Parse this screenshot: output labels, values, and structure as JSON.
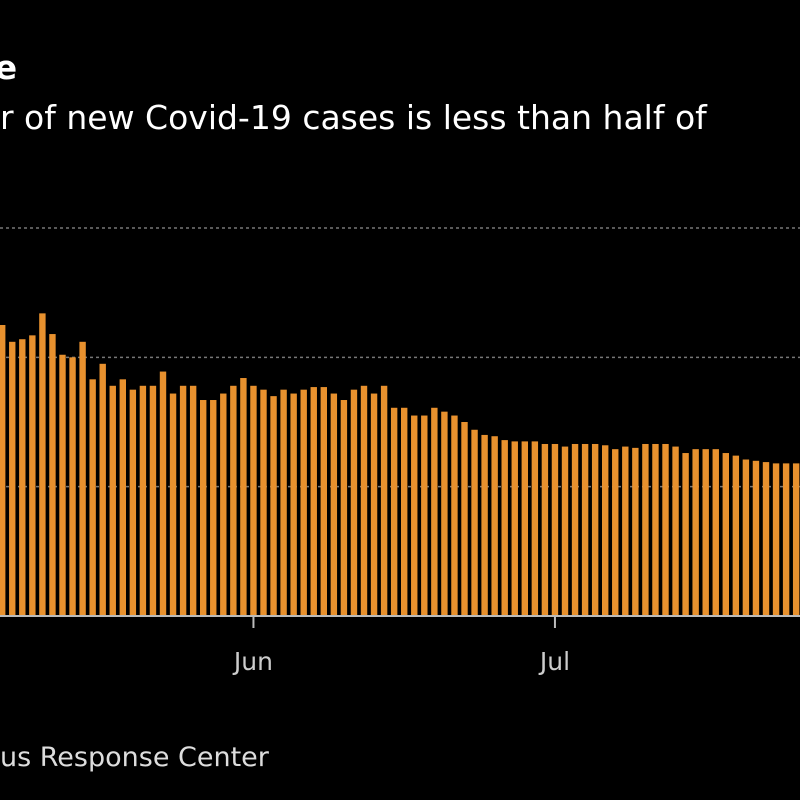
{
  "title": "ine",
  "subtitle": "r of new Covid-19 cases is less than half of",
  "source": "us Response Center",
  "chart_data": {
    "type": "bar",
    "color": "#e8912e",
    "grid": true,
    "ylim": [
      0,
      3
    ],
    "x_tick_labels": [
      {
        "label": "Jun",
        "index": 25
      },
      {
        "label": "Jul",
        "index": 55
      }
    ],
    "values": [
      2.25,
      2.12,
      2.14,
      2.17,
      2.34,
      2.18,
      2.02,
      2.0,
      2.12,
      1.83,
      1.95,
      1.78,
      1.83,
      1.75,
      1.78,
      1.78,
      1.89,
      1.72,
      1.78,
      1.78,
      1.67,
      1.67,
      1.72,
      1.78,
      1.84,
      1.78,
      1.75,
      1.7,
      1.75,
      1.72,
      1.75,
      1.77,
      1.77,
      1.72,
      1.67,
      1.75,
      1.78,
      1.72,
      1.78,
      1.61,
      1.61,
      1.55,
      1.55,
      1.61,
      1.58,
      1.55,
      1.5,
      1.44,
      1.4,
      1.39,
      1.36,
      1.35,
      1.35,
      1.35,
      1.33,
      1.33,
      1.31,
      1.33,
      1.33,
      1.33,
      1.32,
      1.29,
      1.31,
      1.3,
      1.33,
      1.33,
      1.33,
      1.31,
      1.26,
      1.29,
      1.29,
      1.29,
      1.26,
      1.24,
      1.21,
      1.2,
      1.19,
      1.18,
      1.18,
      1.18,
      1.16,
      1.18,
      1.19
    ]
  }
}
